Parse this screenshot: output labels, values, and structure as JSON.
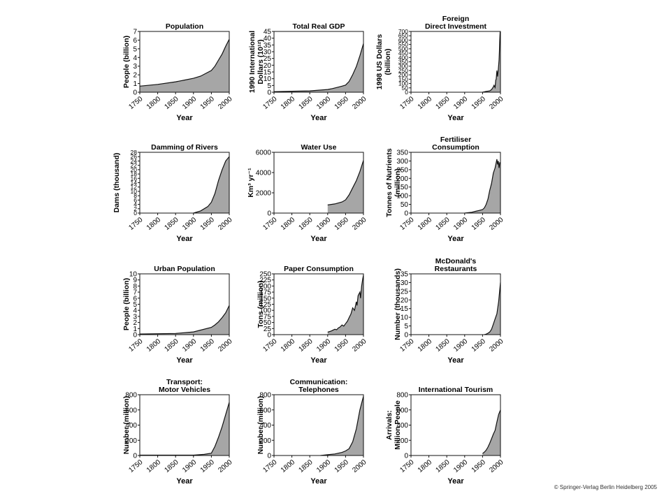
{
  "copyright": "© Springer-Verlag Berlin Heidelberg 2005",
  "chart_data": [
    {
      "type": "area",
      "title": [
        "Population"
      ],
      "ylabel": [
        "People (billion)"
      ],
      "xlabel": "Year",
      "xlim": [
        1750,
        2000
      ],
      "ylim": [
        0,
        7
      ],
      "yticks": [
        0,
        1,
        2,
        3,
        4,
        5,
        6,
        7
      ],
      "xticks": [
        1750,
        1800,
        1850,
        1900,
        1950,
        2000
      ],
      "x": [
        1750,
        1800,
        1850,
        1875,
        1900,
        1920,
        1950,
        1960,
        1970,
        1980,
        1990,
        2000
      ],
      "y": [
        0.7,
        0.9,
        1.2,
        1.4,
        1.6,
        1.85,
        2.5,
        3.0,
        3.7,
        4.4,
        5.3,
        6.1
      ]
    },
    {
      "type": "area",
      "title": [
        "Total Real GDP"
      ],
      "ylabel": [
        "1990 International",
        "Dollars (10¹²)"
      ],
      "xlabel": "Year",
      "xlim": [
        1750,
        2000
      ],
      "ylim": [
        0,
        45
      ],
      "yticks": [
        0,
        5,
        10,
        15,
        20,
        25,
        30,
        35,
        40,
        45
      ],
      "xticks": [
        1750,
        1800,
        1850,
        1900,
        1950,
        2000
      ],
      "x": [
        1750,
        1800,
        1850,
        1900,
        1913,
        1929,
        1940,
        1950,
        1960,
        1970,
        1980,
        1990,
        2000
      ],
      "y": [
        0.4,
        0.7,
        1,
        2,
        2.7,
        3.7,
        4.5,
        5.3,
        8,
        13,
        19,
        27,
        36
      ]
    },
    {
      "type": "area",
      "title": [
        "Foreign",
        "Direct Investment"
      ],
      "ylabel": [
        "1998 US Dollars",
        "(billion)"
      ],
      "xlabel": "Year",
      "xlim": [
        1750,
        2000
      ],
      "ylim": [
        0,
        700
      ],
      "yticks": [
        0,
        50,
        100,
        150,
        200,
        250,
        300,
        350,
        400,
        450,
        500,
        550,
        600,
        650,
        700
      ],
      "xticks": [
        1750,
        1800,
        1850,
        1900,
        1950,
        2000
      ],
      "x": [
        1950,
        1960,
        1970,
        1975,
        1980,
        1982,
        1985,
        1987,
        1988,
        1990,
        1992,
        1994,
        1996,
        1997,
        1998,
        1999,
        2000
      ],
      "y": [
        0,
        10,
        15,
        30,
        60,
        80,
        55,
        140,
        150,
        250,
        180,
        260,
        370,
        470,
        600,
        690,
        690
      ]
    },
    {
      "type": "area",
      "title": [
        "Damming of Rivers"
      ],
      "ylabel": [
        "Dams (thousand)"
      ],
      "xlabel": "Year",
      "xlim": [
        1750,
        2000
      ],
      "ylim": [
        0,
        28
      ],
      "yticks": [
        0,
        2,
        4,
        6,
        8,
        10,
        12,
        14,
        16,
        18,
        20,
        22,
        24,
        26,
        28
      ],
      "xticks": [
        1750,
        1800,
        1850,
        1900,
        1950,
        2000
      ],
      "x": [
        1900,
        1920,
        1940,
        1950,
        1960,
        1970,
        1980,
        1990,
        2000
      ],
      "y": [
        0,
        1,
        3,
        5,
        9,
        15,
        20,
        24,
        26
      ]
    },
    {
      "type": "area",
      "title": [
        "Water Use"
      ],
      "ylabel": [
        "Km³ yr⁻¹"
      ],
      "xlabel": "Year",
      "xlim": [
        1750,
        2000
      ],
      "ylim": [
        0,
        6000
      ],
      "yticks": [
        0,
        2000,
        4000,
        6000
      ],
      "xticks": [
        1750,
        1800,
        1850,
        1900,
        1950,
        2000
      ],
      "x": [
        1900,
        1920,
        1940,
        1950,
        1960,
        1970,
        1980,
        1990,
        2000
      ],
      "y": [
        800,
        900,
        1100,
        1300,
        1800,
        2500,
        3200,
        4100,
        5200
      ]
    },
    {
      "type": "area",
      "title": [
        "Fertiliser",
        "Consumption"
      ],
      "ylabel": [
        "Tonnes of Nutrients",
        "(million)"
      ],
      "xlabel": "Year",
      "xlim": [
        1750,
        2000
      ],
      "ylim": [
        0,
        350
      ],
      "yticks": [
        0,
        50,
        100,
        150,
        200,
        250,
        300,
        350
      ],
      "xticks": [
        1750,
        1800,
        1850,
        1900,
        1950,
        2000
      ],
      "x": [
        1900,
        1920,
        1930,
        1940,
        1950,
        1955,
        1960,
        1965,
        1970,
        1975,
        1980,
        1985,
        1988,
        1990,
        1992,
        1994,
        1996,
        1998,
        2000
      ],
      "y": [
        0,
        5,
        10,
        15,
        20,
        30,
        50,
        80,
        130,
        170,
        230,
        260,
        290,
        310,
        280,
        300,
        260,
        290,
        290
      ]
    },
    {
      "type": "area",
      "title": [
        "Urban Population"
      ],
      "ylabel": [
        "People (billion)"
      ],
      "xlabel": "Year",
      "xlim": [
        1750,
        2000
      ],
      "ylim": [
        0,
        10
      ],
      "yticks": [
        0,
        1,
        2,
        3,
        4,
        5,
        6,
        7,
        8,
        9,
        10
      ],
      "xticks": [
        1750,
        1800,
        1850,
        1900,
        1950,
        2000
      ],
      "x": [
        1750,
        1800,
        1850,
        1900,
        1950,
        1960,
        1970,
        1980,
        1990,
        2000
      ],
      "y": [
        0.1,
        0.15,
        0.2,
        0.45,
        1.2,
        1.6,
        2.1,
        2.8,
        3.6,
        4.8
      ]
    },
    {
      "type": "area",
      "title": [
        "Paper Consumption"
      ],
      "ylabel": [
        "Tons (million)"
      ],
      "xlabel": "Year",
      "xlim": [
        1750,
        2000
      ],
      "ylim": [
        0,
        250
      ],
      "yticks": [
        0,
        25,
        50,
        75,
        100,
        125,
        150,
        175,
        200,
        225,
        250
      ],
      "xticks": [
        1750,
        1800,
        1850,
        1900,
        1950,
        2000
      ],
      "x": [
        1900,
        1910,
        1920,
        1925,
        1930,
        1935,
        1940,
        1945,
        1950,
        1955,
        1960,
        1965,
        1970,
        1975,
        1980,
        1982,
        1985,
        1990,
        1992,
        1995,
        1998,
        2000
      ],
      "y": [
        10,
        15,
        22,
        20,
        28,
        32,
        40,
        35,
        45,
        55,
        70,
        85,
        110,
        100,
        135,
        120,
        160,
        175,
        150,
        200,
        230,
        245
      ]
    },
    {
      "type": "area",
      "title": [
        "McDonald's",
        "Restaurants"
      ],
      "ylabel": [
        "Number (thousands)"
      ],
      "xlabel": "Year",
      "xlim": [
        1750,
        2000
      ],
      "ylim": [
        0,
        35
      ],
      "yticks": [
        0,
        5,
        10,
        15,
        20,
        25,
        30,
        35
      ],
      "xticks": [
        1750,
        1800,
        1850,
        1900,
        1950,
        2000
      ],
      "x": [
        1955,
        1960,
        1965,
        1970,
        1975,
        1980,
        1985,
        1990,
        1995,
        2000
      ],
      "y": [
        0,
        0.3,
        0.8,
        1.5,
        3,
        6,
        9,
        12,
        19,
        30
      ]
    },
    {
      "type": "area",
      "title": [
        "Transport:",
        "Motor Vehicles"
      ],
      "ylabel": [
        "Number (million)"
      ],
      "xlabel": "Year",
      "xlim": [
        1750,
        2000
      ],
      "ylim": [
        0,
        800
      ],
      "yticks": [
        0,
        200,
        400,
        600,
        800
      ],
      "xticks": [
        1750,
        1800,
        1850,
        1900,
        1950,
        2000
      ],
      "x": [
        1750,
        1900,
        1930,
        1950,
        1960,
        1970,
        1980,
        1990,
        2000
      ],
      "y": [
        5,
        5,
        15,
        30,
        120,
        240,
        380,
        540,
        700
      ]
    },
    {
      "type": "area",
      "title": [
        "Communication:",
        "Telephones"
      ],
      "ylabel": [
        "Number (million)"
      ],
      "xlabel": "Year",
      "xlim": [
        1750,
        2000
      ],
      "ylim": [
        0,
        800
      ],
      "yticks": [
        0,
        200,
        400,
        600,
        800
      ],
      "xticks": [
        1750,
        1800,
        1850,
        1900,
        1950,
        2000
      ],
      "x": [
        1880,
        1900,
        1920,
        1940,
        1950,
        1960,
        1970,
        1980,
        1990,
        2000
      ],
      "y": [
        0,
        10,
        20,
        40,
        60,
        90,
        180,
        350,
        600,
        780
      ]
    },
    {
      "type": "area",
      "title": [
        "International Tourism"
      ],
      "ylabel": [
        "Arrivals:",
        "Million People"
      ],
      "xlabel": "Year",
      "xlim": [
        1750,
        2000
      ],
      "ylim": [
        0,
        800
      ],
      "yticks": [
        0,
        200,
        400,
        600,
        800
      ],
      "xticks": [
        1750,
        1800,
        1850,
        1900,
        1950,
        2000
      ],
      "x": [
        1950,
        1955,
        1960,
        1965,
        1970,
        1975,
        1980,
        1985,
        1990,
        1995,
        2000
      ],
      "y": [
        25,
        45,
        70,
        110,
        160,
        220,
        280,
        330,
        440,
        540,
        600
      ]
    }
  ]
}
